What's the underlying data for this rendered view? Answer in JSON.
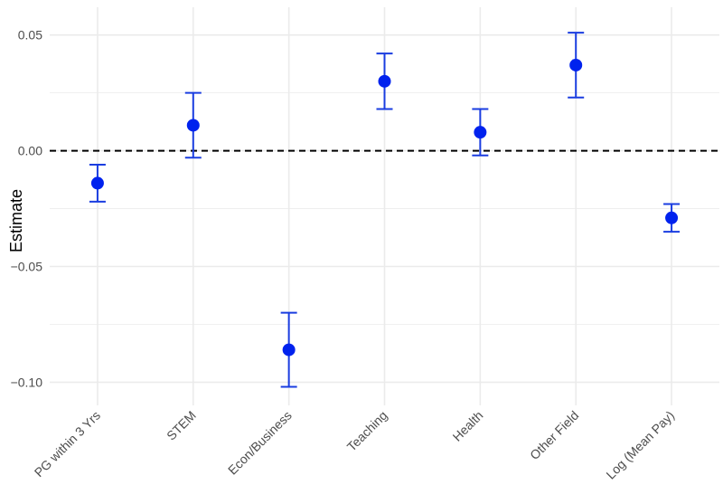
{
  "chart_data": {
    "type": "scatter",
    "subtype": "point-with-errorbars",
    "title": "",
    "xlabel": "",
    "ylabel": "Estimate",
    "categories": [
      "PG within 3 Yrs",
      "STEM",
      "Econ/Business",
      "Teaching",
      "Health",
      "Other Field",
      "Log (Mean Pay)"
    ],
    "series": [
      {
        "values": [
          -0.014,
          0.011,
          -0.086,
          0.03,
          0.008,
          0.037,
          -0.029
        ],
        "lower": [
          -0.022,
          -0.003,
          -0.102,
          0.018,
          -0.002,
          0.023,
          -0.035
        ],
        "upper": [
          -0.006,
          0.025,
          -0.07,
          0.042,
          0.018,
          0.051,
          -0.023
        ]
      }
    ],
    "ylim": [
      -0.11,
      0.062
    ],
    "yticks": [
      0.05,
      0.0,
      -0.05,
      -0.1
    ],
    "ytick_labels": [
      "0.05",
      "0.00",
      "−0.05",
      "−0.10"
    ],
    "reference_line": {
      "y": 0,
      "style": "dashed",
      "color": "#000000"
    },
    "colors": {
      "point": "#0022ee",
      "errorbar": "#1a3de0",
      "grid": "#ebebeb"
    },
    "grid": true,
    "legend": "none"
  }
}
